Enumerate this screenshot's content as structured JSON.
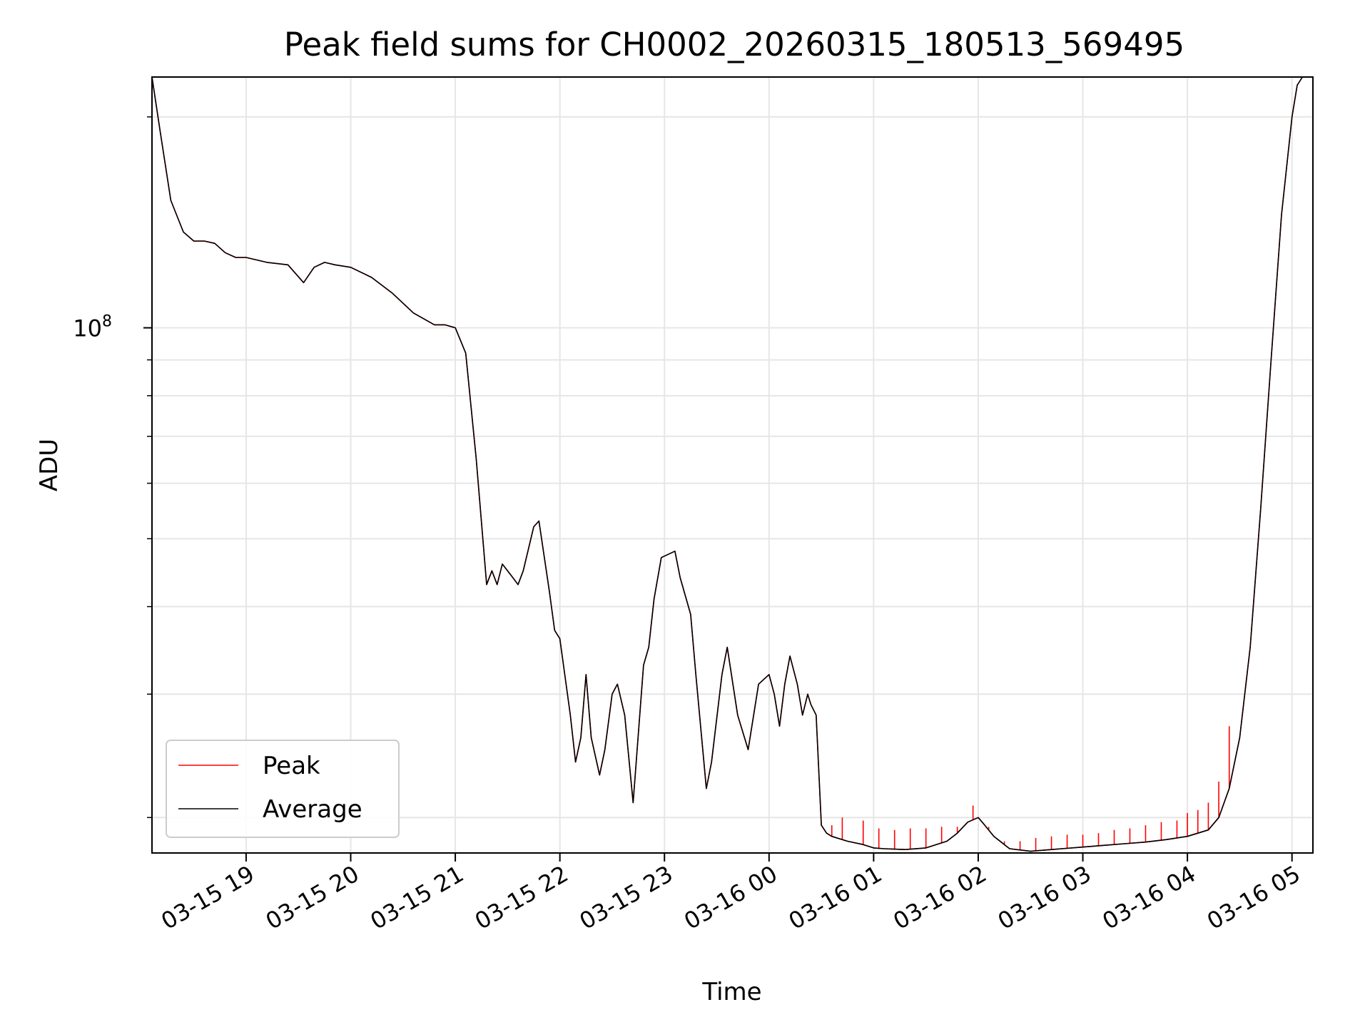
{
  "chart_data": {
    "type": "line",
    "title": "Peak field sums for CH0002_20260315_180513_569495",
    "xlabel": "Time",
    "ylabel": "ADU",
    "yscale": "log",
    "ylim": [
      17800000,
      228000000
    ],
    "xlim_hours": [
      -0.9,
      10.2
    ],
    "grid": true,
    "legend_position": "lower-left",
    "colors": {
      "peak": "#ff0000",
      "average": "#000000",
      "grid": "#e6e6e6",
      "axes": "#000000"
    },
    "x_ticks": [
      {
        "label": "03-15 19",
        "hours": 0
      },
      {
        "label": "03-15 20",
        "hours": 1
      },
      {
        "label": "03-15 21",
        "hours": 2
      },
      {
        "label": "03-15 22",
        "hours": 3
      },
      {
        "label": "03-15 23",
        "hours": 4
      },
      {
        "label": "03-16 00",
        "hours": 5
      },
      {
        "label": "03-16 01",
        "hours": 6
      },
      {
        "label": "03-16 02",
        "hours": 7
      },
      {
        "label": "03-16 03",
        "hours": 8
      },
      {
        "label": "03-16 04",
        "hours": 9
      },
      {
        "label": "03-16 05",
        "hours": 10
      }
    ],
    "y_major_ticks": [
      {
        "value": 100000000,
        "base": "10",
        "exp": "8"
      }
    ],
    "y_minor_ticks": [
      20000000,
      30000000,
      40000000,
      50000000,
      60000000,
      70000000,
      80000000,
      90000000,
      200000000
    ],
    "x_reference": "hours relative to 03-15 19:00",
    "series": [
      {
        "name": "Average",
        "x": [
          -0.9,
          -0.82,
          -0.72,
          -0.6,
          -0.5,
          -0.4,
          -0.3,
          -0.2,
          -0.1,
          0.0,
          0.2,
          0.4,
          0.55,
          0.65,
          0.75,
          0.85,
          1.0,
          1.2,
          1.4,
          1.6,
          1.8,
          1.9,
          2.0,
          2.1,
          2.2,
          2.3,
          2.35,
          2.4,
          2.45,
          2.55,
          2.6,
          2.65,
          2.75,
          2.8,
          2.9,
          2.95,
          3.0,
          3.1,
          3.15,
          3.2,
          3.25,
          3.3,
          3.38,
          3.43,
          3.5,
          3.55,
          3.62,
          3.7,
          3.8,
          3.85,
          3.9,
          3.97,
          4.1,
          4.15,
          4.25,
          4.3,
          4.4,
          4.45,
          4.55,
          4.6,
          4.7,
          4.8,
          4.9,
          5.0,
          5.05,
          5.1,
          5.15,
          5.2,
          5.27,
          5.32,
          5.37,
          5.4,
          5.45,
          5.5,
          5.55,
          5.6,
          5.75,
          5.9,
          6.0,
          6.1,
          6.3,
          6.5,
          6.7,
          6.8,
          6.9,
          7.0,
          7.05,
          7.15,
          7.3,
          7.5,
          7.7,
          7.8,
          8.0,
          8.2,
          8.4,
          8.6,
          8.8,
          9.0,
          9.2,
          9.3,
          9.4,
          9.5,
          9.6,
          9.7,
          9.8,
          9.9,
          10.0,
          10.05,
          10.1,
          10.15
        ],
        "y": [
          228000000,
          190000000,
          152000000,
          137000000,
          133000000,
          133000000,
          132000000,
          128000000,
          126000000,
          126000000,
          124000000,
          123000000,
          116000000,
          122000000,
          124000000,
          123000000,
          122000000,
          118000000,
          112000000,
          105000000,
          101000000,
          101000000,
          100000000,
          92000000,
          65000000,
          43000000,
          45000000,
          43000000,
          46000000,
          44000000,
          43000000,
          45000000,
          52000000,
          53000000,
          42000000,
          37000000,
          36000000,
          28000000,
          24000000,
          26000000,
          32000000,
          26000000,
          23000000,
          25000000,
          30000000,
          31000000,
          28000000,
          21000000,
          33000000,
          35000000,
          41000000,
          47000000,
          48000000,
          44000000,
          39000000,
          32000000,
          22000000,
          24000000,
          32000000,
          35000000,
          28000000,
          25000000,
          31000000,
          32000000,
          30000000,
          27000000,
          31000000,
          34000000,
          31000000,
          28000000,
          30000000,
          29000000,
          28000000,
          19500000,
          19000000,
          18800000,
          18500000,
          18300000,
          18100000,
          18050000,
          18000000,
          18100000,
          18500000,
          19000000,
          19700000,
          20000000,
          19600000,
          18800000,
          18050000,
          17900000,
          18000000,
          18050000,
          18150000,
          18250000,
          18350000,
          18450000,
          18600000,
          18800000,
          19200000,
          20000000,
          22000000,
          26000000,
          35000000,
          55000000,
          90000000,
          145000000,
          200000000,
          222000000,
          228000000,
          228000000
        ]
      },
      {
        "name": "Peak",
        "x": [
          -0.9,
          -0.82,
          -0.72,
          -0.6,
          -0.5,
          -0.4,
          -0.3,
          -0.2,
          -0.1,
          0.0,
          0.2,
          0.4,
          0.55,
          0.65,
          0.75,
          0.85,
          1.0,
          1.2,
          1.4,
          1.6,
          1.8,
          1.9,
          2.0,
          2.1,
          2.2,
          2.3,
          2.35,
          2.4,
          2.45,
          2.55,
          2.6,
          2.65,
          2.75,
          2.8,
          2.9,
          2.95,
          3.0,
          3.1,
          3.15,
          3.2,
          3.25,
          3.3,
          3.38,
          3.43,
          3.5,
          3.55,
          3.62,
          3.7,
          3.8,
          3.85,
          3.9,
          3.97,
          4.1,
          4.15,
          4.25,
          4.3,
          4.4,
          4.45,
          4.55,
          4.6,
          4.7,
          4.8,
          4.9,
          5.0,
          5.05,
          5.1,
          5.15,
          5.2,
          5.27,
          5.32,
          5.37,
          5.4,
          5.45,
          5.5,
          5.55,
          5.6,
          5.75,
          5.9,
          6.0,
          6.1,
          6.3,
          6.5,
          6.7,
          6.8,
          6.9,
          7.0,
          7.05,
          7.15,
          7.3,
          7.5,
          7.7,
          7.8,
          8.0,
          8.2,
          8.4,
          8.6,
          8.8,
          9.0,
          9.2,
          9.3,
          9.4,
          9.5,
          9.6,
          9.7,
          9.8,
          9.9,
          10.0,
          10.05,
          10.1,
          10.15
        ],
        "y": [
          228000000,
          190000000,
          152000000,
          137000000,
          133000000,
          133000000,
          132000000,
          128000000,
          126000000,
          126000000,
          124000000,
          123000000,
          116000000,
          122000000,
          124000000,
          123000000,
          122000000,
          118000000,
          112000000,
          105000000,
          101000000,
          101000000,
          100000000,
          92000000,
          65000000,
          43000000,
          45000000,
          43000000,
          46000000,
          44000000,
          43000000,
          45000000,
          52000000,
          53000000,
          42000000,
          37000000,
          36000000,
          28000000,
          24000000,
          26000000,
          32000000,
          26000000,
          23000000,
          25000000,
          30000000,
          31000000,
          28000000,
          21000000,
          33000000,
          35000000,
          41000000,
          47000000,
          48000000,
          44000000,
          39000000,
          32000000,
          22000000,
          24000000,
          32000000,
          35000000,
          28000000,
          25000000,
          31000000,
          32000000,
          30000000,
          27000000,
          31000000,
          34000000,
          31000000,
          28000000,
          30000000,
          29000000,
          28000000,
          19500000,
          19000000,
          18800000,
          18500000,
          18300000,
          18100000,
          18050000,
          18000000,
          18100000,
          18500000,
          19000000,
          19700000,
          20000000,
          19600000,
          18800000,
          18050000,
          17900000,
          18000000,
          18050000,
          18150000,
          18250000,
          18350000,
          18450000,
          18600000,
          18800000,
          19200000,
          20000000,
          22000000,
          26000000,
          35000000,
          55000000,
          90000000,
          145000000,
          200000000,
          222000000,
          228000000,
          228000000
        ],
        "spikes": [
          {
            "x": 5.6,
            "y": 19500000
          },
          {
            "x": 5.7,
            "y": 20000000
          },
          {
            "x": 5.9,
            "y": 19800000
          },
          {
            "x": 6.05,
            "y": 19300000
          },
          {
            "x": 6.2,
            "y": 19200000
          },
          {
            "x": 6.35,
            "y": 19300000
          },
          {
            "x": 6.5,
            "y": 19300000
          },
          {
            "x": 6.65,
            "y": 19400000
          },
          {
            "x": 6.8,
            "y": 19400000
          },
          {
            "x": 6.95,
            "y": 20800000
          },
          {
            "x": 7.1,
            "y": 19400000
          },
          {
            "x": 7.25,
            "y": 18500000
          },
          {
            "x": 7.4,
            "y": 18500000
          },
          {
            "x": 7.55,
            "y": 18700000
          },
          {
            "x": 7.7,
            "y": 18800000
          },
          {
            "x": 7.85,
            "y": 18900000
          },
          {
            "x": 8.0,
            "y": 18900000
          },
          {
            "x": 8.15,
            "y": 19000000
          },
          {
            "x": 8.3,
            "y": 19200000
          },
          {
            "x": 8.45,
            "y": 19300000
          },
          {
            "x": 8.6,
            "y": 19500000
          },
          {
            "x": 8.75,
            "y": 19700000
          },
          {
            "x": 8.9,
            "y": 19800000
          },
          {
            "x": 9.0,
            "y": 20300000
          },
          {
            "x": 9.1,
            "y": 20500000
          },
          {
            "x": 9.2,
            "y": 21000000
          },
          {
            "x": 9.3,
            "y": 22500000
          },
          {
            "x": 9.4,
            "y": 27000000
          }
        ]
      }
    ],
    "legend": [
      {
        "name": "Peak",
        "color": "#ff0000"
      },
      {
        "name": "Average",
        "color": "#000000"
      }
    ]
  }
}
